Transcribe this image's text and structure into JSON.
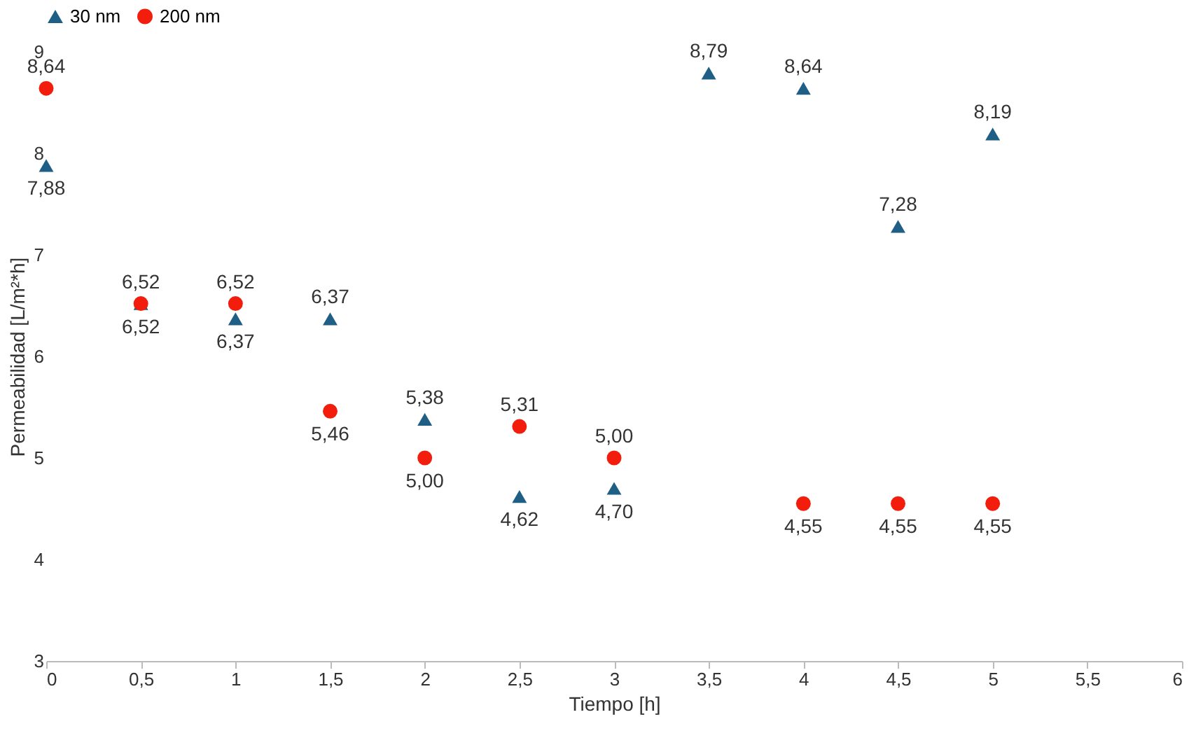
{
  "chart_data": {
    "type": "scatter",
    "xlabel": "Tiempo [h]",
    "ylabel": "Permeabilidad [L/m²*h]",
    "x": [
      0,
      0.5,
      1,
      1.5,
      2,
      2.5,
      3,
      3.5,
      4,
      4.5,
      5
    ],
    "series": [
      {
        "name": "30 nm",
        "color": "#1f5f85",
        "marker": "triangle",
        "values": [
          7.88,
          6.52,
          6.37,
          6.37,
          5.38,
          4.62,
          4.7,
          8.79,
          8.64,
          7.28,
          8.19
        ],
        "value_labels": [
          "7,88",
          "6,52",
          "6,37",
          "6,37",
          "5,38",
          "4,62",
          "4,70",
          "8,79",
          "8,64",
          "7,28",
          "8,19"
        ]
      },
      {
        "name": "200 nm",
        "color": "#f21d0c",
        "marker": "circle",
        "values": [
          8.64,
          6.52,
          6.52,
          5.46,
          5.0,
          5.31,
          5.0,
          null,
          4.55,
          4.55,
          4.55
        ],
        "value_labels": [
          "8,64",
          "6,52",
          "6,52",
          "5,46",
          "5,00",
          "5,31",
          "5,00",
          null,
          "4,55",
          "4,55",
          "4,55"
        ]
      }
    ],
    "xlim": [
      0,
      6
    ],
    "xticks": [
      0,
      {
        "value": 0.5,
        "label": "0,5"
      },
      1,
      {
        "value": 1.5,
        "label": "1,5"
      },
      2,
      {
        "value": 2.5,
        "label": "2,5"
      },
      3,
      {
        "value": 3.5,
        "label": "3,5"
      },
      4,
      {
        "value": 4.5,
        "label": "4,5"
      },
      5,
      {
        "value": 5.5,
        "label": "5,5"
      },
      6
    ],
    "ylim": [
      3,
      9
    ],
    "yticks": [
      3,
      4,
      5,
      6,
      7,
      8,
      9
    ],
    "grid": false,
    "legend": "top"
  }
}
